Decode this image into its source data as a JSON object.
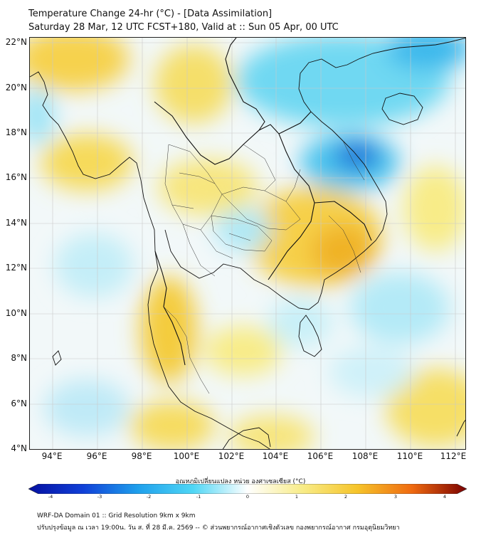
{
  "header": {
    "title_line1": "Temperature Change 24-hr (°C) - [Data Assimilation]",
    "title_line2": "Saturday 28 Mar, 12 UTC FCST+180, Valid at :: Sun 05 Apr, 00 UTC"
  },
  "map": {
    "lat_labels": [
      "22°N",
      "20°N",
      "18°N",
      "16°N",
      "14°N",
      "12°N",
      "10°N",
      "8°N",
      "6°N",
      "4°N"
    ],
    "lon_labels": [
      "94°E",
      "96°E",
      "98°E",
      "100°E",
      "102°E",
      "104°E",
      "106°E",
      "108°E",
      "110°E",
      "112°E"
    ],
    "field_units": "°C"
  },
  "colorbar": {
    "label": "อุณหภูมิเปลี่ยนแปลง หน่วย องศาเซลเซียส (°C)",
    "ticks": [
      "-4",
      "-3",
      "-2",
      "-1",
      "0",
      "1",
      "2",
      "3",
      "4"
    ],
    "min": -4,
    "max": 4,
    "colors": [
      "#050fa0",
      "#1040d8",
      "#1fa0ec",
      "#4fd6f5",
      "#ffffff",
      "#f8ec88",
      "#f6c42a",
      "#ef6a10",
      "#7a0000"
    ]
  },
  "footer": {
    "line1": "WRF-DA Domain 01 :: Grid Resolution 9km x 9km",
    "line2": "ปรับปรุงข้อมูล ณ เวลา 19:00น. วัน ส. ที่ 28 มี.ค. 2569 -- © ส่วนพยากรณ์อากาศเชิงตัวเลข กองพยากรณ์อากาศ กรมอุตุนิยมวิทยา"
  }
}
